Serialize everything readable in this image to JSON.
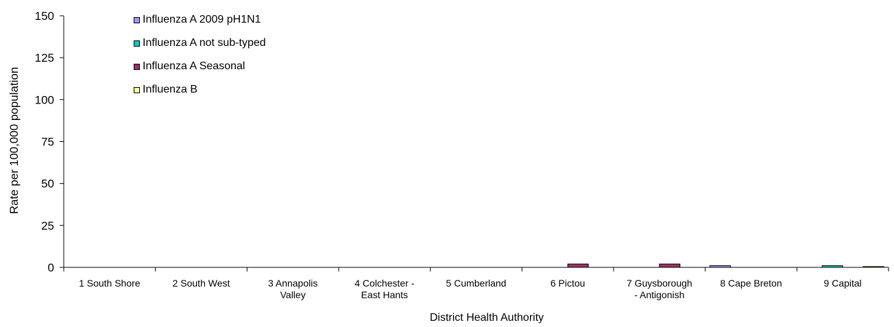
{
  "chart_data": {
    "type": "bar",
    "xlabel": "District Health Authority",
    "ylabel": "Rate per 100,000 population",
    "ylim": [
      0,
      150
    ],
    "yticks": [
      0,
      25,
      50,
      75,
      100,
      125,
      150
    ],
    "grid": false,
    "legend_position": "top-left",
    "categories": [
      [
        "1 South Shore"
      ],
      [
        "2 South West"
      ],
      [
        "3 Annapolis",
        "Valley"
      ],
      [
        "4 Colchester -",
        "East Hants"
      ],
      [
        "5 Cumberland"
      ],
      [
        "6 Pictou"
      ],
      [
        "7 Guysborough",
        "- Antigonish"
      ],
      [
        "8 Cape Breton"
      ],
      [
        "9 Capital"
      ]
    ],
    "series": [
      {
        "name": "Influenza A 2009 pH1N1",
        "color": "#9999ff",
        "values": [
          0,
          0,
          0,
          0,
          0,
          0,
          0,
          1.0,
          0
        ]
      },
      {
        "name": "Influenza A not sub-typed",
        "color": "#00cccc",
        "values": [
          0,
          0,
          0,
          0,
          0,
          0,
          0,
          0,
          1.0
        ]
      },
      {
        "name": "Influenza A Seasonal",
        "color": "#993366",
        "values": [
          0,
          0,
          0,
          0,
          0,
          2.0,
          2.0,
          0,
          0
        ]
      },
      {
        "name": "Influenza B",
        "color": "#ffff99",
        "values": [
          0,
          0,
          0,
          0,
          0,
          0,
          0,
          0,
          0.5
        ]
      }
    ]
  }
}
